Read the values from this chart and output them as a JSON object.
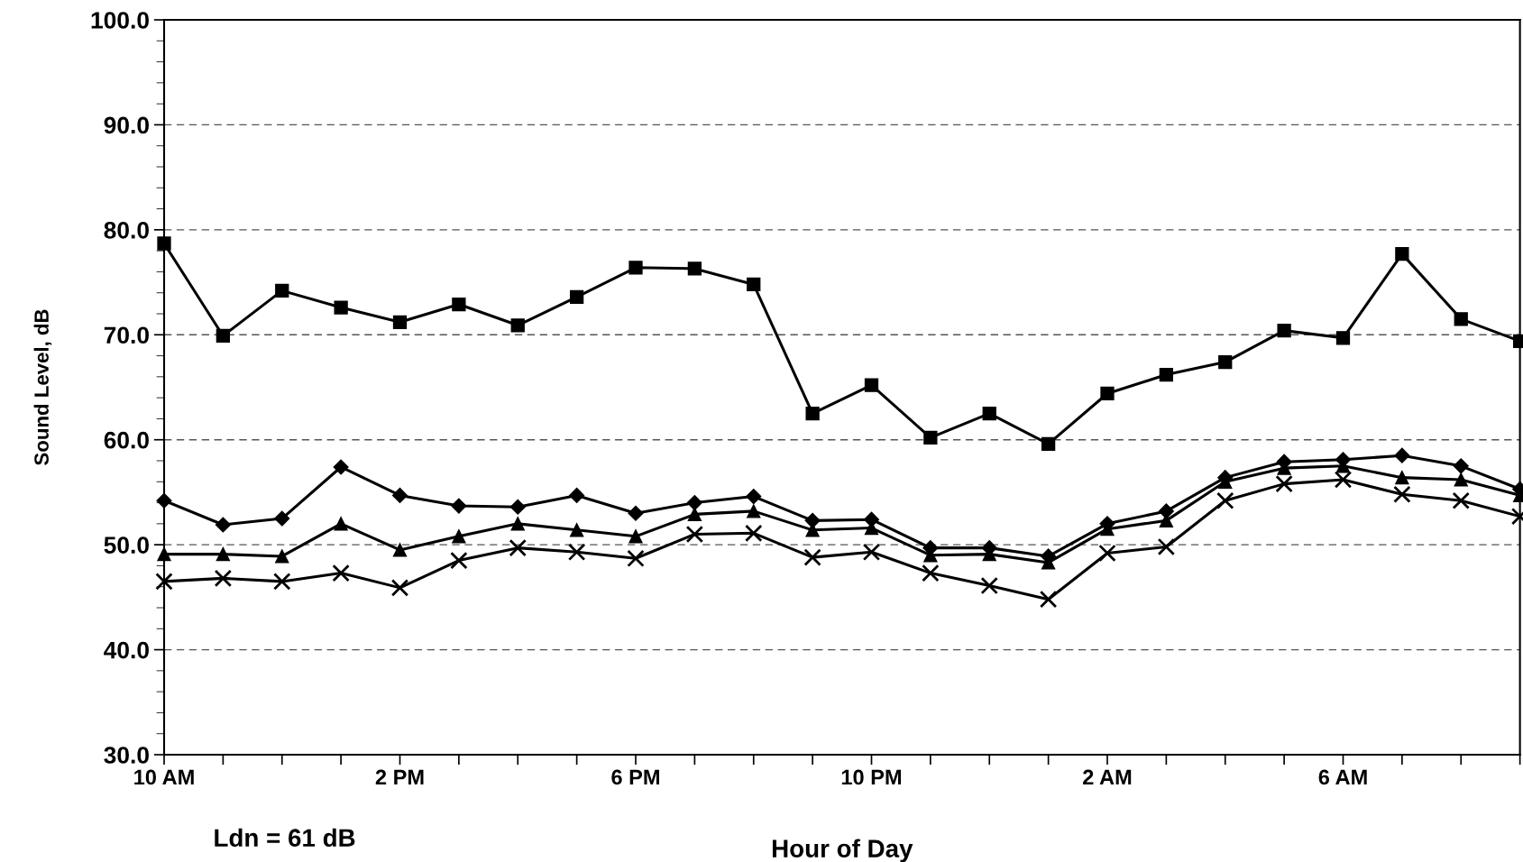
{
  "chart_data": {
    "type": "line",
    "xlabel": "Hour of Day",
    "ylabel": "Sound Level, dB",
    "categories": [
      "10 AM",
      null,
      null,
      null,
      "2 PM",
      null,
      null,
      null,
      "6 PM",
      null,
      null,
      null,
      "10 PM",
      null,
      null,
      null,
      "2 AM",
      null,
      null,
      null,
      "6 AM",
      null,
      null,
      null
    ],
    "series": [
      {
        "color": "#000000",
        "marker": "square",
        "values": [
          78.7,
          69.9,
          74.2,
          72.6,
          71.2,
          72.9,
          70.9,
          73.6,
          76.4,
          76.3,
          74.8,
          62.5,
          65.2,
          60.2,
          62.5,
          59.6,
          64.4,
          66.2,
          67.4,
          70.4,
          69.7,
          77.7,
          71.5,
          69.4
        ]
      },
      {
        "color": "#000000",
        "marker": "diamond",
        "values": [
          54.2,
          51.9,
          52.5,
          57.4,
          54.7,
          53.7,
          53.6,
          54.7,
          53.0,
          54.0,
          54.6,
          52.3,
          52.4,
          49.7,
          49.7,
          48.9,
          52.0,
          53.2,
          56.4,
          57.9,
          58.1,
          58.5,
          57.5,
          55.3
        ]
      },
      {
        "color": "#000000",
        "marker": "triangle",
        "values": [
          49.1,
          49.1,
          48.9,
          52.0,
          49.5,
          50.8,
          52.0,
          51.4,
          50.8,
          52.9,
          53.2,
          51.4,
          51.6,
          49.0,
          49.1,
          48.3,
          51.5,
          52.3,
          56.0,
          57.3,
          57.5,
          56.4,
          56.2,
          54.7
        ]
      },
      {
        "color": "#000000",
        "marker": "cross",
        "values": [
          46.5,
          46.8,
          46.5,
          47.3,
          45.9,
          48.5,
          49.7,
          49.3,
          48.7,
          51.0,
          51.1,
          48.8,
          49.3,
          47.3,
          46.1,
          44.8,
          49.2,
          49.8,
          54.2,
          55.8,
          56.2,
          54.8,
          54.2,
          52.7
        ]
      }
    ],
    "ylim": [
      30,
      100
    ],
    "yticks": [
      {
        "value": 30,
        "label": "30.0"
      },
      {
        "value": 40,
        "label": "40.0"
      },
      {
        "value": 50,
        "label": "50.0"
      },
      {
        "value": 60,
        "label": "60.0"
      },
      {
        "value": 70,
        "label": "70.0"
      },
      {
        "value": 80,
        "label": "80.0"
      },
      {
        "value": 90,
        "label": "90.0"
      },
      {
        "value": 100,
        "label": "100.0"
      }
    ],
    "grid": "y",
    "line_style": "solid",
    "annotations": [
      "Ldn = 61 dB"
    ]
  }
}
